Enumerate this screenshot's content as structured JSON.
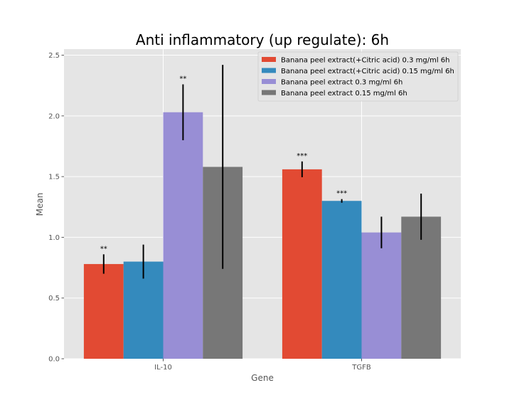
{
  "chart_data": {
    "type": "bar",
    "title": "Anti inflammatory (up regulate): 6h",
    "xlabel": "Gene",
    "ylabel": "Mean",
    "categories": [
      "IL-10",
      "TGFB"
    ],
    "ylim": [
      0,
      2.55
    ],
    "yticks": [
      0.0,
      0.5,
      1.0,
      1.5,
      2.0,
      2.5
    ],
    "ytick_labels": [
      "0.0",
      "0.5",
      "1.0",
      "1.5",
      "2.0",
      "2.5"
    ],
    "grid": true,
    "legend_position": "top-right",
    "series": [
      {
        "name": "Banana peel extract(+Citric acid) 0.3 mg/ml 6h",
        "color": "#E24A33",
        "values": [
          0.78,
          1.56
        ],
        "errors": [
          0.08,
          0.065
        ],
        "significance": [
          "**",
          "***"
        ]
      },
      {
        "name": "Banana peel extract(+Citric acid) 0.15 mg/ml 6h",
        "color": "#348ABD",
        "values": [
          0.8,
          1.3
        ],
        "errors": [
          0.14,
          0.015
        ],
        "significance": [
          "",
          "***"
        ]
      },
      {
        "name": "Banana peel extract 0.3 mg/ml 6h",
        "color": "#988ED5",
        "values": [
          2.03,
          1.04
        ],
        "errors": [
          0.23,
          0.13
        ],
        "significance": [
          "**",
          ""
        ]
      },
      {
        "name": "Banana peel extract 0.15 mg/ml 6h",
        "color": "#777777",
        "values": [
          1.58,
          1.17
        ],
        "errors": [
          0.84,
          0.19
        ],
        "significance": [
          "",
          ""
        ]
      }
    ]
  }
}
